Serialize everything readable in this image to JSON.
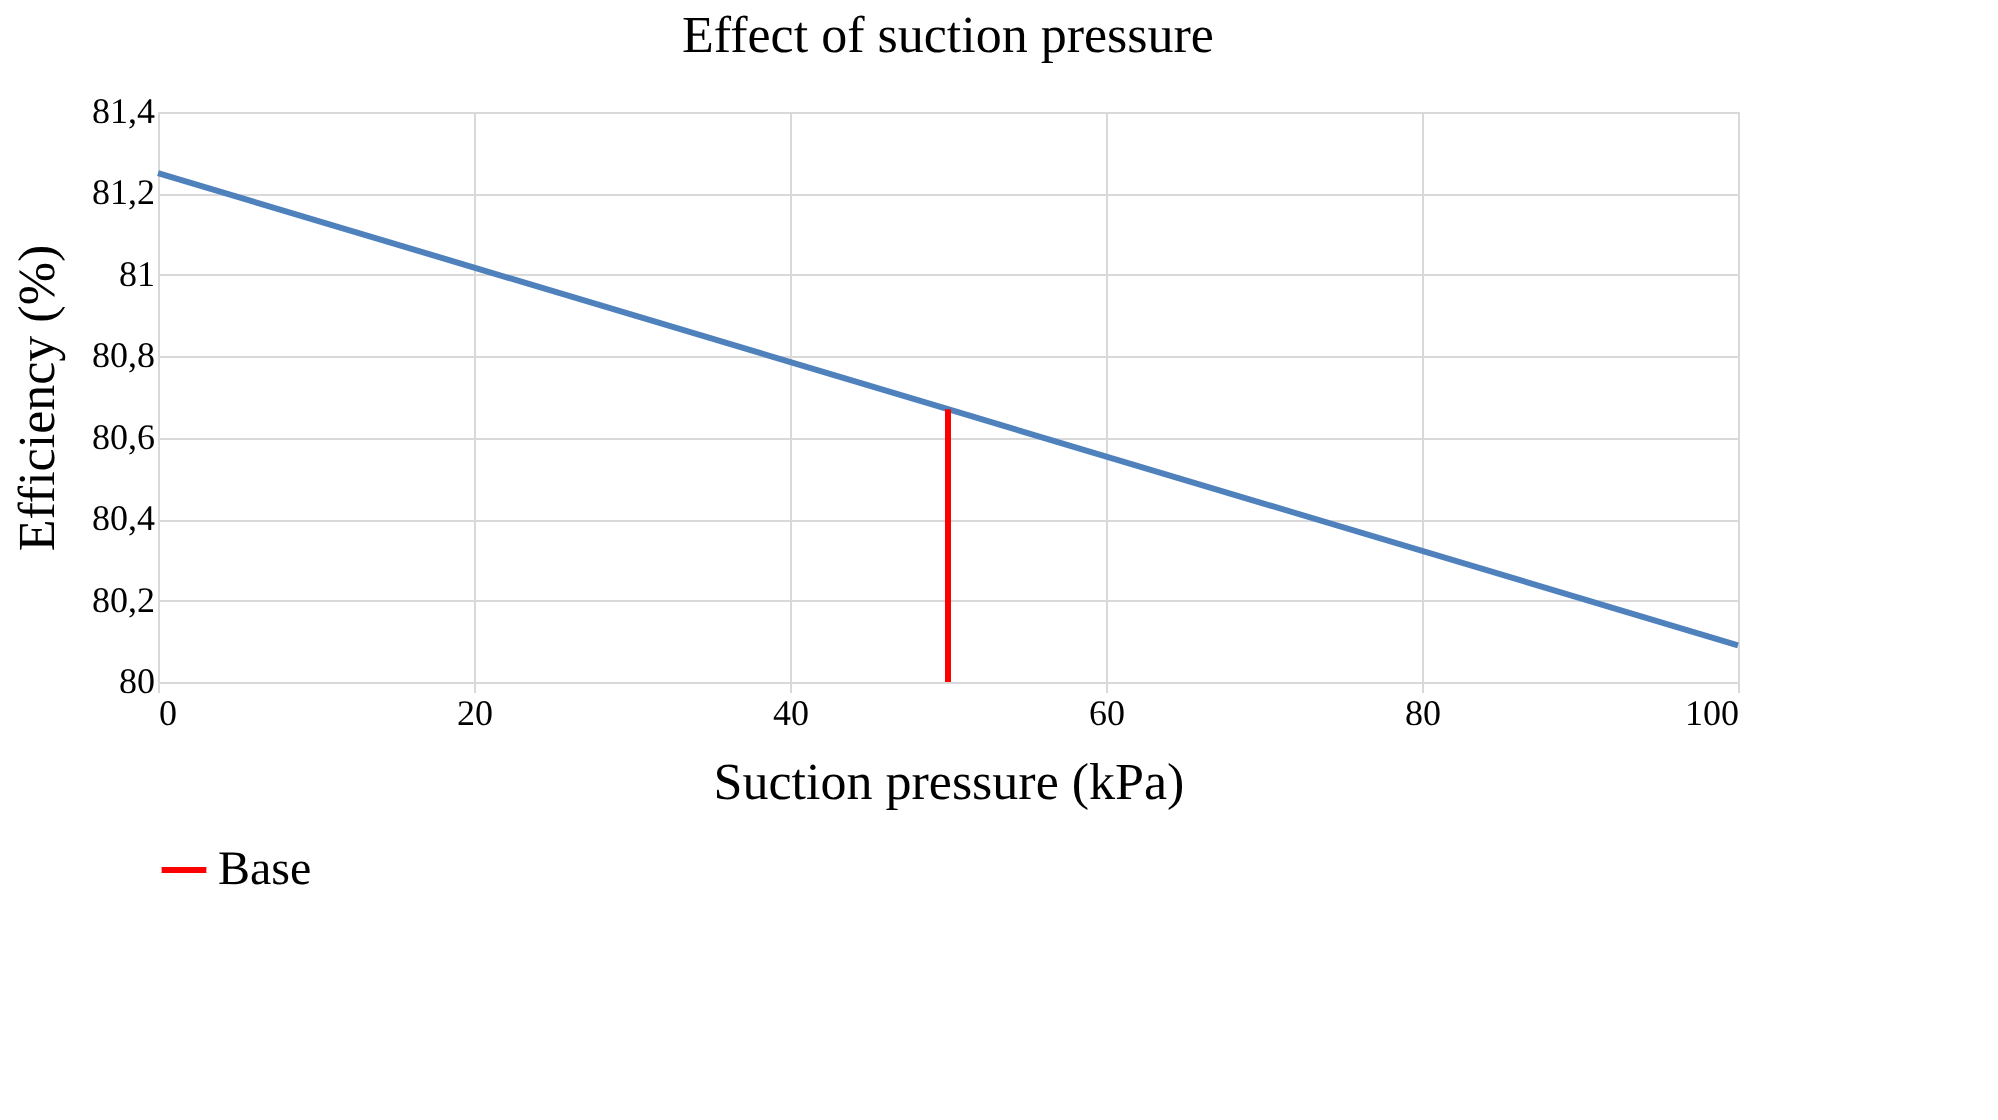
{
  "chart_data": {
    "type": "line",
    "title": "Effect of suction pressure",
    "xlabel": "Suction pressure (kPa)",
    "ylabel": "Efficiency (%)",
    "x": [
      0,
      50,
      100
    ],
    "series": [
      {
        "color": "#4f81bd",
        "values": [
          81.25,
          80.67,
          80.09
        ]
      },
      {
        "name": "Base",
        "color": "#ff0000",
        "x": [
          50,
          50
        ],
        "values": [
          80,
          80.67
        ]
      }
    ],
    "xlim": [
      0,
      100
    ],
    "xticks": [
      0,
      20,
      40,
      60,
      80,
      100
    ],
    "ylim": [
      80,
      81.4
    ],
    "yticks": [
      80,
      {
        "value": 80.2,
        "label": "80,2"
      },
      {
        "value": 80.4,
        "label": "80,4"
      },
      {
        "value": 80.6,
        "label": "80,6"
      },
      {
        "value": 80.8,
        "label": "80,8"
      },
      81,
      {
        "value": 81.2,
        "label": "81,2"
      },
      {
        "value": 81.4,
        "label": "81,4"
      }
    ],
    "grid": true,
    "legend": "bottom",
    "marker": "none",
    "line_style": "solid"
  }
}
